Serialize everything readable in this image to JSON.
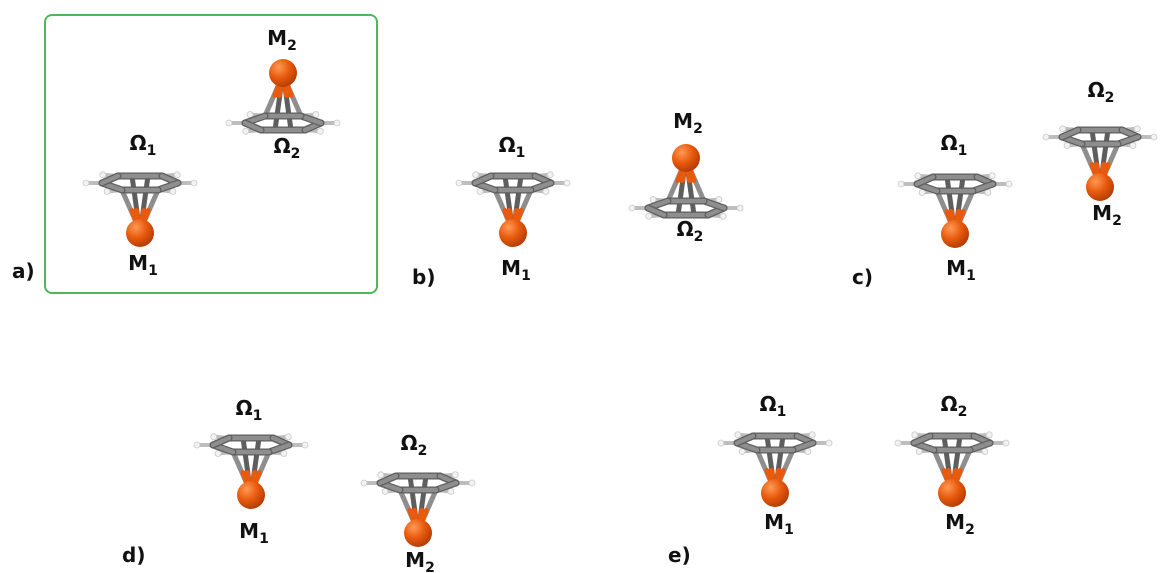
{
  "colors": {
    "metal": "#e85a0d",
    "metal_highlight": "#ff9a55",
    "metal_shadow": "#b73f05",
    "ring_bond": "#8e8e8e",
    "ring_bond_dark": "#5e5e5e",
    "hydrogen": "#f2f2f2",
    "highlight_frame": "#4cb85a"
  },
  "panels": [
    {
      "id": "a",
      "label": "a)",
      "highlighted": true,
      "molecules": [
        {
          "metal": "M",
          "metal_sub": "1",
          "ring": "Ω",
          "ring_sub": "1",
          "orientation": "metal-down"
        },
        {
          "metal": "M",
          "metal_sub": "2",
          "ring": "Ω",
          "ring_sub": "2",
          "orientation": "metal-up"
        }
      ]
    },
    {
      "id": "b",
      "label": "b)",
      "highlighted": false,
      "molecules": [
        {
          "metal": "M",
          "metal_sub": "1",
          "ring": "Ω",
          "ring_sub": "1",
          "orientation": "metal-down"
        },
        {
          "metal": "M",
          "metal_sub": "2",
          "ring": "Ω",
          "ring_sub": "2",
          "orientation": "metal-up"
        }
      ]
    },
    {
      "id": "c",
      "label": "c)",
      "highlighted": false,
      "molecules": [
        {
          "metal": "M",
          "metal_sub": "1",
          "ring": "Ω",
          "ring_sub": "1",
          "orientation": "metal-down"
        },
        {
          "metal": "M",
          "metal_sub": "2",
          "ring": "Ω",
          "ring_sub": "2",
          "orientation": "metal-down"
        }
      ]
    },
    {
      "id": "d",
      "label": "d)",
      "highlighted": false,
      "molecules": [
        {
          "metal": "M",
          "metal_sub": "1",
          "ring": "Ω",
          "ring_sub": "1",
          "orientation": "metal-down"
        },
        {
          "metal": "M",
          "metal_sub": "2",
          "ring": "Ω",
          "ring_sub": "2",
          "orientation": "metal-down"
        }
      ]
    },
    {
      "id": "e",
      "label": "e)",
      "highlighted": false,
      "molecules": [
        {
          "metal": "M",
          "metal_sub": "1",
          "ring": "Ω",
          "ring_sub": "1",
          "orientation": "metal-down"
        },
        {
          "metal": "M",
          "metal_sub": "2",
          "ring": "Ω",
          "ring_sub": "2",
          "orientation": "metal-down"
        }
      ]
    }
  ]
}
